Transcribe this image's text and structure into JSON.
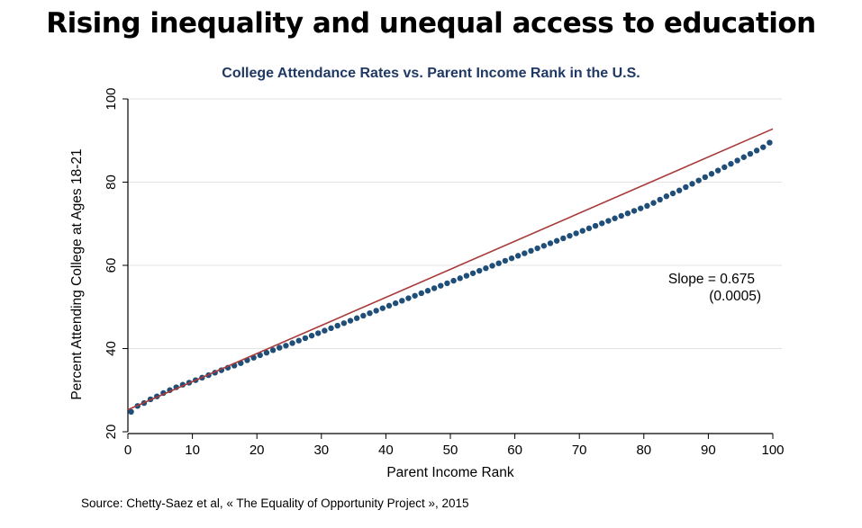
{
  "slide": {
    "title": "Rising inequality and unequal access to education",
    "source": "Source: Chetty-Saez et al, « The Equality of Opportunity Project », 2015"
  },
  "chart_data": {
    "type": "scatter",
    "title": "College Attendance Rates vs. Parent Income Rank in the U.S.",
    "xlabel": "Parent Income Rank",
    "ylabel": "Percent Attending College at Ages 18-21",
    "xlim": [
      0,
      100
    ],
    "ylim": [
      20,
      100
    ],
    "xticks": [
      0,
      10,
      20,
      30,
      40,
      50,
      60,
      70,
      80,
      90,
      100
    ],
    "yticks": [
      20,
      40,
      60,
      80,
      100
    ],
    "grid": "horizontal",
    "annotation": {
      "line1": "Slope = 0.675",
      "line2": "(0.0005)"
    },
    "fit_line": {
      "slope": 0.675,
      "intercept": 25.3,
      "color": "#a83a3a"
    },
    "colors": {
      "points": "#1f4e79",
      "title": "#1f3864",
      "grid": "#e3e3e3"
    },
    "series": [
      {
        "x": [
          0.5,
          1.5,
          2.5,
          3.5,
          4.5,
          5.5,
          6.5,
          7.5,
          8.5,
          9.5,
          10.5,
          11.5,
          12.5,
          13.5,
          14.5,
          15.5,
          16.5,
          17.5,
          18.5,
          19.5,
          20.5,
          21.5,
          22.5,
          23.5,
          24.5,
          25.5,
          26.5,
          27.5,
          28.5,
          29.5,
          30.5,
          31.5,
          32.5,
          33.5,
          34.5,
          35.5,
          36.5,
          37.5,
          38.5,
          39.5,
          40.5,
          41.5,
          42.5,
          43.5,
          44.5,
          45.5,
          46.5,
          47.5,
          48.5,
          49.5,
          50.5,
          51.5,
          52.5,
          53.5,
          54.5,
          55.5,
          56.5,
          57.5,
          58.5,
          59.5,
          60.5,
          61.5,
          62.5,
          63.5,
          64.5,
          65.5,
          66.5,
          67.5,
          68.5,
          69.5,
          70.5,
          71.5,
          72.5,
          73.5,
          74.5,
          75.5,
          76.5,
          77.5,
          78.5,
          79.5,
          80.5,
          81.5,
          82.5,
          83.5,
          84.5,
          85.5,
          86.5,
          87.5,
          88.5,
          89.5,
          90.5,
          91.5,
          92.5,
          93.5,
          94.5,
          95.5,
          96.5,
          97.5,
          98.5,
          99.5
        ],
        "y": [
          24.8,
          26.2,
          26.9,
          27.8,
          28.5,
          29.3,
          30.0,
          30.7,
          31.3,
          31.8,
          32.4,
          33.0,
          33.6,
          34.2,
          34.8,
          35.4,
          35.9,
          36.5,
          37.2,
          37.8,
          38.4,
          39.0,
          39.6,
          40.2,
          40.7,
          41.3,
          41.9,
          42.5,
          43.1,
          43.7,
          44.3,
          44.9,
          45.5,
          46.1,
          46.7,
          47.3,
          47.9,
          48.5,
          49.1,
          49.7,
          50.3,
          50.9,
          51.5,
          52.1,
          52.7,
          53.3,
          53.9,
          54.5,
          55.1,
          55.7,
          56.3,
          56.9,
          57.5,
          58.1,
          58.7,
          59.3,
          59.9,
          60.5,
          61.1,
          61.7,
          62.3,
          62.9,
          63.5,
          64.1,
          64.7,
          65.3,
          65.9,
          66.5,
          67.1,
          67.7,
          68.3,
          68.9,
          69.5,
          70.1,
          70.7,
          71.3,
          71.9,
          72.5,
          73.1,
          73.7,
          74.3,
          75.0,
          75.8,
          76.6,
          77.3,
          78.0,
          78.8,
          79.6,
          80.4,
          81.2,
          82.0,
          82.8,
          83.6,
          84.4,
          85.2,
          86.0,
          86.8,
          87.6,
          88.4,
          89.5
        ]
      }
    ]
  }
}
